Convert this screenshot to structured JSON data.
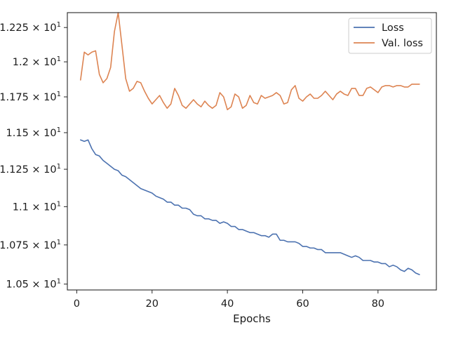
{
  "chart_data": {
    "type": "line",
    "title": "",
    "xlabel": "Epochs",
    "ylabel": "",
    "xlim": [
      -2.5,
      95.5
    ],
    "ylim": [
      10.463,
      12.36
    ],
    "log_scale_y": true,
    "grid": false,
    "legend_position": "top-right",
    "x_ticks": [
      0,
      20,
      40,
      60,
      80
    ],
    "x_tick_labels": [
      "0",
      "20",
      "40",
      "60",
      "80"
    ],
    "y_ticks": [
      10.5,
      10.75,
      11.0,
      11.25,
      11.5,
      11.75,
      12.0,
      12.25
    ],
    "y_tick_labels": [
      "1.05 × 10¹",
      "1.075 × 10¹",
      "1.1 × 10¹",
      "1.125 × 10¹",
      "1.15 × 10¹",
      "1.175 × 10¹",
      "1.2 × 10¹",
      "1.225 × 10¹"
    ],
    "colors": {
      "loss": "#4c72b0",
      "val_loss": "#dd8452"
    },
    "series": [
      {
        "name": "Loss",
        "color": "#4c72b0",
        "values": [
          11.45,
          11.44,
          11.45,
          11.39,
          11.35,
          11.34,
          11.31,
          11.29,
          11.27,
          11.25,
          11.24,
          11.21,
          11.2,
          11.18,
          11.16,
          11.14,
          11.12,
          11.11,
          11.1,
          11.09,
          11.07,
          11.06,
          11.05,
          11.03,
          11.03,
          11.01,
          11.01,
          10.99,
          10.99,
          10.98,
          10.95,
          10.94,
          10.94,
          10.92,
          10.92,
          10.91,
          10.91,
          10.89,
          10.9,
          10.89,
          10.87,
          10.87,
          10.85,
          10.85,
          10.84,
          10.83,
          10.83,
          10.82,
          10.81,
          10.81,
          10.8,
          10.82,
          10.82,
          10.78,
          10.78,
          10.77,
          10.77,
          10.77,
          10.76,
          10.74,
          10.74,
          10.73,
          10.73,
          10.72,
          10.72,
          10.7,
          10.7,
          10.7,
          10.7,
          10.7,
          10.69,
          10.68,
          10.67,
          10.68,
          10.67,
          10.65,
          10.65,
          10.65,
          10.64,
          10.64,
          10.63,
          10.63,
          10.61,
          10.62,
          10.61,
          10.59,
          10.58,
          10.6,
          10.59,
          10.57,
          10.56
        ]
      },
      {
        "name": "Val. loss",
        "color": "#dd8452",
        "values": [
          11.87,
          12.07,
          12.05,
          12.07,
          12.08,
          11.91,
          11.85,
          11.88,
          11.96,
          12.22,
          12.36,
          12.12,
          11.88,
          11.79,
          11.81,
          11.86,
          11.85,
          11.79,
          11.74,
          11.7,
          11.73,
          11.76,
          11.71,
          11.67,
          11.7,
          11.81,
          11.76,
          11.69,
          11.67,
          11.7,
          11.73,
          11.7,
          11.68,
          11.72,
          11.69,
          11.67,
          11.69,
          11.78,
          11.75,
          11.66,
          11.68,
          11.77,
          11.75,
          11.67,
          11.69,
          11.76,
          11.71,
          11.7,
          11.76,
          11.74,
          11.75,
          11.76,
          11.78,
          11.76,
          11.7,
          11.71,
          11.8,
          11.83,
          11.74,
          11.72,
          11.75,
          11.77,
          11.74,
          11.74,
          11.76,
          11.79,
          11.76,
          11.73,
          11.77,
          11.79,
          11.77,
          11.76,
          11.81,
          11.81,
          11.76,
          11.76,
          11.81,
          11.82,
          11.8,
          11.78,
          11.82,
          11.83,
          11.83,
          11.82,
          11.83,
          11.83,
          11.82,
          11.82,
          11.84,
          11.84,
          11.84
        ]
      }
    ]
  }
}
